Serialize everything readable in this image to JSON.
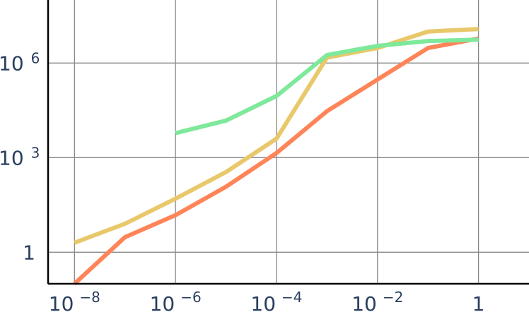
{
  "chart_data": {
    "type": "line",
    "x_scale": "log",
    "y_scale": "log",
    "xlim": [
      3e-09,
      10
    ],
    "ylim": [
      0.1,
      100000000.0
    ],
    "grid": true,
    "x_ticks": [
      {
        "value": 1e-08,
        "base": "10",
        "exp": "−8"
      },
      {
        "value": 1e-06,
        "base": "10",
        "exp": "−6"
      },
      {
        "value": 0.0001,
        "base": "10",
        "exp": "−4"
      },
      {
        "value": 0.01,
        "base": "10",
        "exp": "−2"
      },
      {
        "value": 1,
        "base": "1",
        "exp": ""
      }
    ],
    "y_ticks": [
      {
        "value": 1,
        "base": "1",
        "exp": ""
      },
      {
        "value": 1000,
        "base": "10",
        "exp": "3"
      },
      {
        "value": 1000000,
        "base": "10",
        "exp": "6"
      }
    ],
    "series": [
      {
        "color": "#e8c86a",
        "x": [
          1e-08,
          1e-07,
          1e-06,
          1e-05,
          0.0001,
          0.001,
          0.01,
          0.1,
          1
        ],
        "y": [
          2,
          8,
          50,
          350,
          4000,
          1500000,
          3000000,
          10000000,
          12000000
        ]
      },
      {
        "color": "#ff8458",
        "x": [
          1e-08,
          1e-07,
          1e-06,
          1e-05,
          0.0001,
          0.001,
          0.01,
          0.1,
          1
        ],
        "y": [
          0.1,
          3,
          15,
          120,
          1400,
          30000,
          300000,
          3000000,
          6000000
        ]
      },
      {
        "color": "#7ee89b",
        "x": [
          1e-06,
          1e-05,
          0.0001,
          0.001,
          0.01,
          0.1,
          1
        ],
        "y": [
          6000,
          15000,
          90000,
          1800000,
          3500000,
          5000000,
          5500000
        ]
      }
    ]
  }
}
